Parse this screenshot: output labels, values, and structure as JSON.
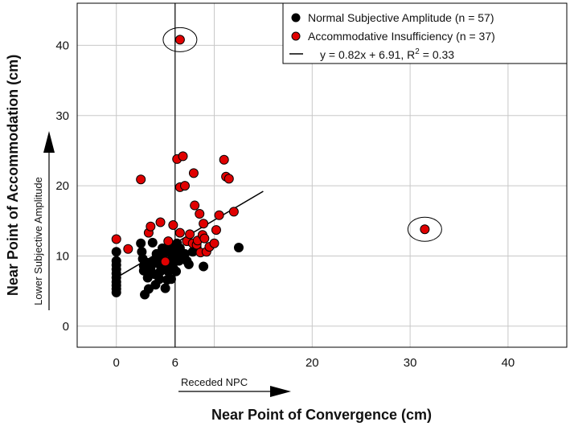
{
  "chart_data": {
    "type": "scatter",
    "xlabel": "Near Point of Convergence (cm)",
    "ylabel": "Near Point of Accommodation (cm)",
    "xlim": [
      -4,
      46
    ],
    "ylim": [
      -3,
      46
    ],
    "x_ticks": [
      0,
      10,
      20,
      30,
      40
    ],
    "x_tick_labels": [
      "0",
      "",
      "20",
      "30",
      "40"
    ],
    "y_ticks": [
      0,
      10,
      20,
      30,
      40
    ],
    "y_tick_labels": [
      "0",
      "10",
      "20",
      "30",
      "40"
    ],
    "grid": true,
    "legend_position": "top-right",
    "vertical_reference": {
      "x": 6,
      "label": "6"
    },
    "annotations": {
      "x_direction": "Receded NPC",
      "y_direction": "Lower Subjective Amplitude"
    },
    "colors": {
      "normal": "#000000",
      "ai": "#e00000",
      "ai_outline": "#000000",
      "grid": "#c8c8c8"
    },
    "series": [
      {
        "name": "Normal Subjective Amplitude (n = 57)",
        "color": "#000000",
        "points": [
          [
            0,
            4.8
          ],
          [
            0,
            5.3
          ],
          [
            0,
            5.8
          ],
          [
            0,
            6.3
          ],
          [
            0,
            6.9
          ],
          [
            0,
            7.5
          ],
          [
            0,
            8.1
          ],
          [
            0,
            8.7
          ],
          [
            0,
            9.3
          ],
          [
            0,
            10.6
          ],
          [
            2.5,
            11.8
          ],
          [
            2.6,
            10.6
          ],
          [
            2.7,
            9.6
          ],
          [
            2.8,
            8.6
          ],
          [
            2.8,
            7.9
          ],
          [
            2.9,
            4.5
          ],
          [
            3.0,
            9.1
          ],
          [
            3.2,
            6.9
          ],
          [
            3.3,
            7.6
          ],
          [
            3.3,
            5.3
          ],
          [
            3.5,
            8.3
          ],
          [
            3.7,
            11.9
          ],
          [
            3.8,
            9.3
          ],
          [
            3.9,
            7.4
          ],
          [
            4.0,
            5.9
          ],
          [
            4.1,
            10.3
          ],
          [
            4.3,
            8.9
          ],
          [
            4.4,
            6.7
          ],
          [
            4.5,
            7.8
          ],
          [
            4.6,
            9.9
          ],
          [
            4.7,
            11.1
          ],
          [
            4.9,
            9.3
          ],
          [
            5.0,
            5.4
          ],
          [
            5.0,
            10.5
          ],
          [
            5.1,
            8.4
          ],
          [
            5.2,
            6.6
          ],
          [
            5.3,
            7.8
          ],
          [
            5.4,
            10.9
          ],
          [
            5.5,
            9.1
          ],
          [
            5.6,
            6.7
          ],
          [
            5.7,
            9.9
          ],
          [
            5.8,
            8.3
          ],
          [
            5.9,
            10.6
          ],
          [
            6.0,
            11.5
          ],
          [
            6.1,
            7.8
          ],
          [
            6.2,
            11.8
          ],
          [
            6.3,
            10.1
          ],
          [
            6.4,
            9.3
          ],
          [
            6.5,
            11.1
          ],
          [
            6.7,
            9.6
          ],
          [
            7.0,
            10.3
          ],
          [
            7.2,
            9.3
          ],
          [
            7.4,
            8.8
          ],
          [
            7.8,
            10.6
          ],
          [
            8.2,
            11.3
          ],
          [
            8.9,
            8.5
          ],
          [
            12.5,
            11.2
          ]
        ]
      },
      {
        "name": "Accommodative Insufficiency (n = 37)",
        "color": "#e00000",
        "points": [
          [
            6.5,
            40.8
          ],
          [
            31.5,
            13.8
          ],
          [
            0,
            12.4
          ],
          [
            1.2,
            11.0
          ],
          [
            2.5,
            20.9
          ],
          [
            3.3,
            13.3
          ],
          [
            3.5,
            14.2
          ],
          [
            4.5,
            14.8
          ],
          [
            5.0,
            9.2
          ],
          [
            5.3,
            12.1
          ],
          [
            5.8,
            14.4
          ],
          [
            6.2,
            23.8
          ],
          [
            6.5,
            19.8
          ],
          [
            6.8,
            24.2
          ],
          [
            7.0,
            20.0
          ],
          [
            7.2,
            12.1
          ],
          [
            7.5,
            13.1
          ],
          [
            7.8,
            11.8
          ],
          [
            7.9,
            21.8
          ],
          [
            8.0,
            17.2
          ],
          [
            8.2,
            11.6
          ],
          [
            8.3,
            12.2
          ],
          [
            8.5,
            16.0
          ],
          [
            8.6,
            10.5
          ],
          [
            8.8,
            13.0
          ],
          [
            8.9,
            14.6
          ],
          [
            9.0,
            12.5
          ],
          [
            9.2,
            10.6
          ],
          [
            9.5,
            11.3
          ],
          [
            10.0,
            11.8
          ],
          [
            10.2,
            13.7
          ],
          [
            10.5,
            15.8
          ],
          [
            11.0,
            23.7
          ],
          [
            11.2,
            21.3
          ],
          [
            11.5,
            21.0
          ],
          [
            12.0,
            16.3
          ],
          [
            6.5,
            13.3
          ]
        ]
      }
    ],
    "regression": {
      "label": "y = 0.82x + 6.91, R",
      "label_sup": "2",
      "label_tail": " = 0.33",
      "slope": 0.82,
      "intercept": 6.91,
      "r_squared": 0.33,
      "x_range": [
        0,
        15
      ]
    },
    "highlighted_outliers": [
      [
        6.5,
        40.8
      ],
      [
        31.5,
        13.8
      ]
    ]
  }
}
